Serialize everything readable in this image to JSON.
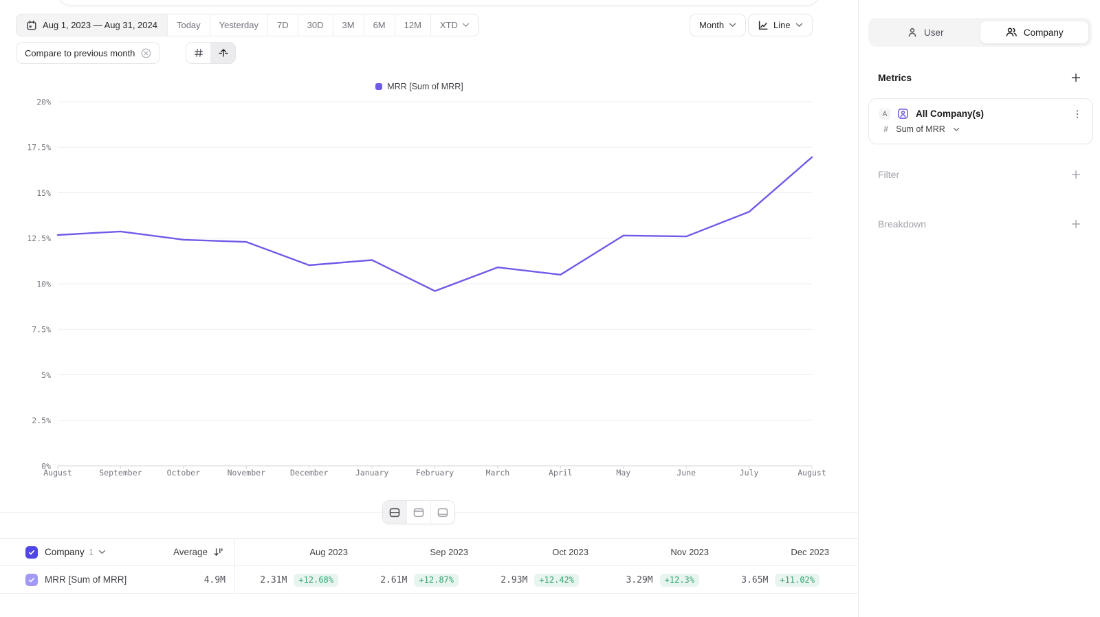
{
  "toolbar": {
    "date_range": "Aug 1, 2023 — Aug 31, 2024",
    "quick_ranges": [
      "Today",
      "Yesterday",
      "7D",
      "30D",
      "3M",
      "6M",
      "12M"
    ],
    "to_date_label": "XTD",
    "granularity_label": "Month",
    "chart_type_label": "Line",
    "compare_label": "Compare to previous month"
  },
  "legend": {
    "label": "MRR [Sum of MRR]",
    "color": "#6e5be8"
  },
  "chart_data": {
    "type": "line",
    "title": "",
    "legend_entries": [
      "MRR [Sum of MRR]"
    ],
    "legend_position": "top-center",
    "grid": "horizontal",
    "x_categories": [
      "August",
      "September",
      "October",
      "November",
      "December",
      "January",
      "February",
      "March",
      "April",
      "May",
      "June",
      "July",
      "August"
    ],
    "series": [
      {
        "name": "MRR [Sum of MRR]",
        "color": "#6e5be8",
        "unit": "%",
        "values": [
          12.68,
          12.87,
          12.42,
          12.3,
          11.02,
          11.3,
          9.6,
          10.9,
          10.5,
          12.65,
          12.6,
          13.95,
          16.95
        ]
      }
    ],
    "ylim": [
      0,
      20
    ],
    "ytick_step": 2.5,
    "ytick_labels": [
      "0%",
      "2.5%",
      "5%",
      "7.5%",
      "10%",
      "12.5%",
      "15%",
      "17.5%",
      "20%"
    ]
  },
  "sidebar": {
    "toggle": {
      "user": "User",
      "company": "Company",
      "selected": "Company"
    },
    "metrics_title": "Metrics",
    "metric": {
      "badge": "A",
      "name": "All Company(s)",
      "value_type_symbol": "#",
      "aggregation": "Sum of MRR"
    },
    "filter_title": "Filter",
    "breakdown_title": "Breakdown"
  },
  "table": {
    "entity_label": "Company",
    "entity_count": "1",
    "average_label": "Average",
    "columns": [
      "Aug 2023",
      "Sep 2023",
      "Oct 2023",
      "Nov 2023",
      "Dec 2023"
    ],
    "rows": [
      {
        "name": "MRR [Sum of MRR]",
        "average": "4.9M",
        "cells": [
          {
            "value": "2.31M",
            "delta": "+12.68%"
          },
          {
            "value": "2.61M",
            "delta": "+12.87%"
          },
          {
            "value": "2.93M",
            "delta": "+12.42%"
          },
          {
            "value": "3.29M",
            "delta": "+12.3%"
          },
          {
            "value": "3.65M",
            "delta": "+11.02%"
          }
        ]
      }
    ]
  },
  "colors": {
    "accent_purple": "#6e5be8",
    "checkbox_header": "#4f46e5",
    "checkbox_row": "#a29af2",
    "positive_text": "#33a474",
    "positive_bg": "#e7f5ee"
  }
}
